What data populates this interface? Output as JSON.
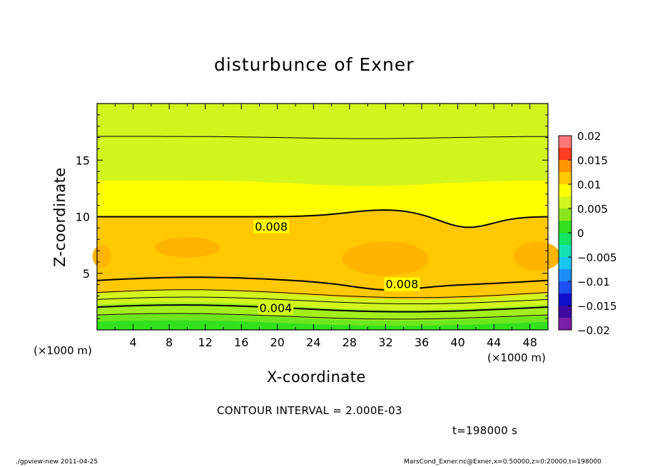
{
  "chart_data": {
    "type": "heatmap",
    "title": "disturbunce of Exner",
    "xlabel": "X-coordinate",
    "ylabel": "Z-coordinate",
    "x_unit_left": "(×1000 m)",
    "x_unit_right": "(×1000 m)",
    "xlim": [
      0,
      50
    ],
    "ylim": [
      0,
      20
    ],
    "x_ticks": [
      4,
      8,
      12,
      16,
      20,
      24,
      28,
      32,
      36,
      40,
      44,
      48
    ],
    "y_ticks": [
      5,
      10,
      15
    ],
    "contour_labels": [
      {
        "text": "0.008",
        "x": 17.5,
        "z": 9.1
      },
      {
        "text": "0.008",
        "x": 32.0,
        "z": 4.0
      },
      {
        "text": "0.004",
        "x": 18.0,
        "z": 1.9
      }
    ],
    "colorbar": {
      "labels": [
        "0.02",
        "0.015",
        "0.01",
        "0.005",
        "0",
        "−0.005",
        "−0.01",
        "−0.015",
        "−0.02"
      ],
      "min": -0.02,
      "max": 0.02,
      "bands": [
        {
          "from": -0.02,
          "to": -0.0175,
          "color": "#7a1fa8"
        },
        {
          "from": -0.0175,
          "to": -0.015,
          "color": "#3c0aa0"
        },
        {
          "from": -0.015,
          "to": -0.0125,
          "color": "#1010cc"
        },
        {
          "from": -0.0125,
          "to": -0.01,
          "color": "#1e4ef0"
        },
        {
          "from": -0.01,
          "to": -0.0075,
          "color": "#1e8cf5"
        },
        {
          "from": -0.0075,
          "to": -0.005,
          "color": "#19c8f0"
        },
        {
          "from": -0.005,
          "to": -0.0025,
          "color": "#14e0b4"
        },
        {
          "from": -0.0025,
          "to": 0,
          "color": "#14e664"
        },
        {
          "from": 0,
          "to": 0.0025,
          "color": "#32e01e"
        },
        {
          "from": 0.0025,
          "to": 0.005,
          "color": "#8ce61e"
        },
        {
          "from": 0.005,
          "to": 0.0075,
          "color": "#d2f51e"
        },
        {
          "from": 0.0075,
          "to": 0.01,
          "color": "#ffff00"
        },
        {
          "from": 0.01,
          "to": 0.0125,
          "color": "#ffc800"
        },
        {
          "from": 0.0125,
          "to": 0.015,
          "color": "#ff9600"
        },
        {
          "from": 0.015,
          "to": 0.0175,
          "color": "#ff3c1e"
        },
        {
          "from": 0.0175,
          "to": 0.02,
          "color": "#ff7878"
        }
      ]
    },
    "contour_interval_text": "CONTOUR INTERVAL = 2.000E-03",
    "time_text": "t=198000 s"
  },
  "footer": {
    "left": "./gpview-new  2011-04-25",
    "right": "MarsCond_Exner.nc@Exner,x=0:50000,z=0:20000,t=198000"
  }
}
